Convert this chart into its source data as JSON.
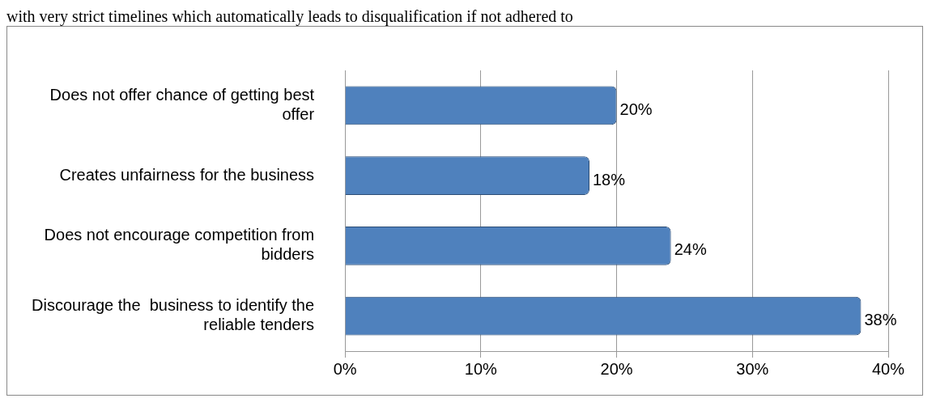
{
  "chart_data": {
    "type": "bar",
    "orientation": "horizontal",
    "annotations": [
      "with very strict timelines which automatically leads to disqualification if not adhered to"
    ],
    "categories": [
      "Does not offer chance of getting best offer",
      "Creates unfairness for the business",
      "Does not encourage competition from bidders",
      "Discourage the  business to identify the reliable tenders"
    ],
    "values": [
      20,
      18,
      24,
      38
    ],
    "value_labels": [
      "20%",
      "18%",
      "24%",
      "38%"
    ],
    "color": "#4f81bd",
    "xlim": [
      0,
      40
    ],
    "xticks": [
      {
        "value": 0,
        "label": "0%"
      },
      {
        "value": 10,
        "label": "10%"
      },
      {
        "value": 20,
        "label": "20%"
      },
      {
        "value": 30,
        "label": "30%"
      },
      {
        "value": 40,
        "label": "40%"
      }
    ],
    "grid": "x",
    "legend": false
  }
}
